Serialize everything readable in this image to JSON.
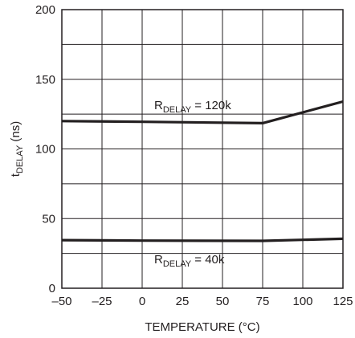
{
  "chart_data": {
    "type": "line",
    "title": "",
    "xlabel": "TEMPERATURE (°C)",
    "ylabel": {
      "main": "t",
      "sub": "DELAY",
      "suffix": " (ns)"
    },
    "xlim": [
      -50,
      125
    ],
    "ylim": [
      0,
      200
    ],
    "x_ticks": [
      "–50",
      "–25",
      "0",
      "25",
      "50",
      "75",
      "100",
      "125"
    ],
    "y_ticks": [
      "0",
      "50",
      "100",
      "150",
      "200"
    ],
    "grid": true,
    "line_color": "#231f20",
    "series": [
      {
        "name": "RDELAY = 120k",
        "label": {
          "main": "R",
          "sub": "DELAY",
          "suffix": " = 120k"
        },
        "x": [
          -50,
          0,
          75,
          125
        ],
        "y": [
          120,
          119.5,
          118.5,
          134
        ]
      },
      {
        "name": "RDELAY = 40k",
        "label": {
          "main": "R",
          "sub": "DELAY",
          "suffix": " = 40k"
        },
        "x": [
          -50,
          0,
          75,
          125
        ],
        "y": [
          34.5,
          34.2,
          34,
          35.5
        ]
      }
    ]
  }
}
